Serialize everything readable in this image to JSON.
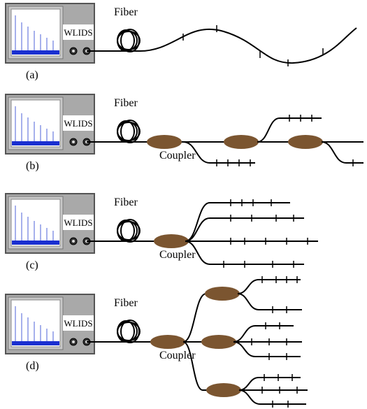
{
  "panels": [
    {
      "label": "(a)",
      "fiber": "Fiber",
      "device": "WLIDS"
    },
    {
      "label": "(b)",
      "fiber": "Fiber",
      "device": "WLIDS",
      "coupler": "Coupler"
    },
    {
      "label": "(c)",
      "fiber": "Fiber",
      "device": "WLIDS",
      "coupler": "Coupler"
    },
    {
      "label": "(d)",
      "fiber": "Fiber",
      "device": "WLIDS",
      "coupler": "Coupler"
    }
  ]
}
